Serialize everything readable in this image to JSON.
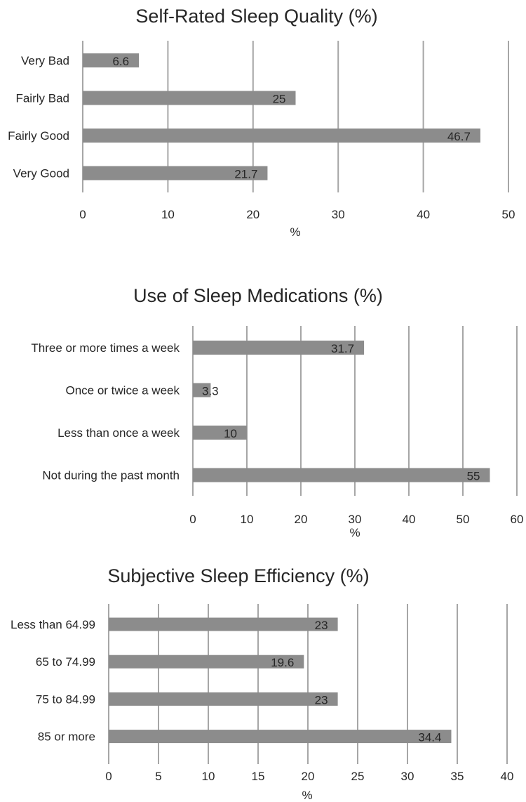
{
  "colors": {
    "bar": "#8c8c8c",
    "grid": "#a6a6a6",
    "text": "#262626"
  },
  "chart_data": [
    {
      "type": "bar",
      "orientation": "horizontal",
      "title": "Self-Rated Sleep Quality (%)",
      "categories": [
        "Very Bad",
        "Fairly Bad",
        "Fairly Good",
        "Very Good"
      ],
      "values": [
        6.6,
        25,
        46.7,
        21.7
      ],
      "value_labels": [
        "6.6",
        "25",
        "46.7",
        "21.7"
      ],
      "xlabel": "%",
      "ylabel": "",
      "xlim": [
        0,
        50
      ],
      "ticks": [
        0,
        10,
        20,
        30,
        40,
        50
      ],
      "grid": true
    },
    {
      "type": "bar",
      "orientation": "horizontal",
      "title": "Use of Sleep Medications (%)",
      "categories": [
        "Three or more times a week",
        "Once or twice a week",
        "Less than once a week",
        "Not during the past month"
      ],
      "values": [
        31.7,
        3.3,
        10,
        55
      ],
      "value_labels": [
        "31.7",
        "3.3",
        "10",
        "55"
      ],
      "xlabel": "%",
      "ylabel": "",
      "xlim": [
        0,
        60
      ],
      "ticks": [
        0,
        10,
        20,
        30,
        40,
        50,
        60
      ],
      "grid": true
    },
    {
      "type": "bar",
      "orientation": "horizontal",
      "title": "Subjective Sleep Efficiency (%)",
      "categories": [
        "Less than 64.99",
        "65 to 74.99",
        "75 to 84.99",
        "85 or more"
      ],
      "values": [
        23,
        19.6,
        23,
        34.4
      ],
      "value_labels": [
        "23",
        "19.6",
        "23",
        "34.4"
      ],
      "xlabel": "%",
      "ylabel": "",
      "xlim": [
        0,
        40
      ],
      "ticks": [
        0,
        5,
        10,
        15,
        20,
        25,
        30,
        35,
        40
      ],
      "grid": true
    }
  ]
}
